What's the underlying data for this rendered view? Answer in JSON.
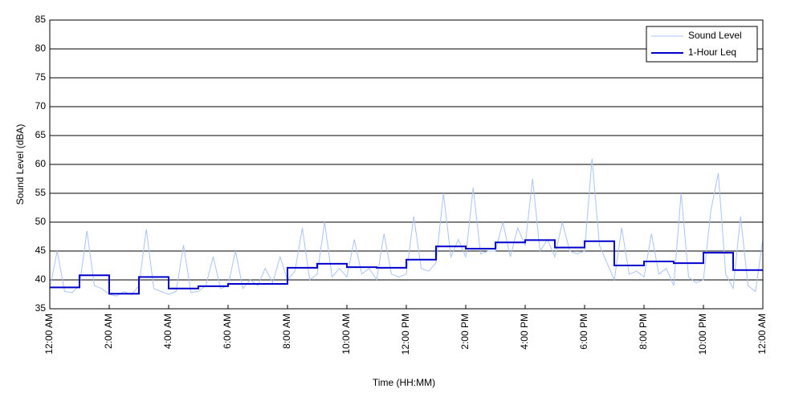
{
  "chart_data": {
    "type": "line",
    "xlabel": "Time (HH:MM)",
    "ylabel": "Sound Level (dBA)",
    "xlim": [
      0,
      24
    ],
    "ylim": [
      35,
      85
    ],
    "xticks": [
      {
        "value": 0,
        "label": "12:00 AM"
      },
      {
        "value": 2,
        "label": "2:00 AM"
      },
      {
        "value": 4,
        "label": "4:00 AM"
      },
      {
        "value": 6,
        "label": "6:00 AM"
      },
      {
        "value": 8,
        "label": "8:00 AM"
      },
      {
        "value": 10,
        "label": "10:00 AM"
      },
      {
        "value": 12,
        "label": "12:00 PM"
      },
      {
        "value": 14,
        "label": "2:00 PM"
      },
      {
        "value": 16,
        "label": "4:00 PM"
      },
      {
        "value": 18,
        "label": "6:00 PM"
      },
      {
        "value": 20,
        "label": "8:00 PM"
      },
      {
        "value": 22,
        "label": "10:00 PM"
      },
      {
        "value": 24,
        "label": "12:00 AM"
      }
    ],
    "yticks": [
      35,
      40,
      45,
      50,
      55,
      60,
      65,
      70,
      75,
      80,
      85
    ],
    "grid": "y",
    "legend": "upper right",
    "series": [
      {
        "name": "Sound Level",
        "color": "#a9c4f5",
        "step": false,
        "x": [
          0,
          0.25,
          0.5,
          0.75,
          1,
          1.25,
          1.5,
          1.75,
          2,
          2.25,
          2.5,
          2.75,
          3,
          3.25,
          3.5,
          3.75,
          4,
          4.25,
          4.5,
          4.75,
          5,
          5.25,
          5.5,
          5.75,
          6,
          6.25,
          6.5,
          6.75,
          7,
          7.25,
          7.5,
          7.75,
          8,
          8.25,
          8.5,
          8.75,
          9,
          9.25,
          9.5,
          9.75,
          10,
          10.25,
          10.5,
          10.75,
          11,
          11.25,
          11.5,
          11.75,
          12,
          12.25,
          12.5,
          12.75,
          13,
          13.25,
          13.5,
          13.75,
          14,
          14.25,
          14.5,
          14.75,
          15,
          15.25,
          15.5,
          15.75,
          16,
          16.25,
          16.5,
          16.75,
          17,
          17.25,
          17.5,
          17.75,
          18,
          18.25,
          18.5,
          18.75,
          19,
          19.25,
          19.5,
          19.75,
          20,
          20.25,
          20.5,
          20.75,
          21,
          21.25,
          21.5,
          21.75,
          22,
          22.25,
          22.5,
          22.75,
          23,
          23.25,
          23.5,
          23.75,
          24
        ],
        "values": [
          38.5,
          45,
          38,
          37.8,
          39,
          48.5,
          39,
          38.5,
          37.5,
          37.2,
          38,
          37.4,
          39,
          48.8,
          38.5,
          38,
          37.5,
          38,
          46,
          37.8,
          38,
          39,
          44,
          38.5,
          39,
          45,
          38.5,
          40,
          39,
          42,
          39.5,
          44,
          40,
          41.5,
          49,
          40,
          41,
          50,
          40.5,
          42,
          40.5,
          47,
          41,
          42,
          40,
          48,
          41,
          40.5,
          41,
          51,
          42,
          41.5,
          43,
          55,
          44,
          47,
          44,
          56,
          44.5,
          45,
          45,
          50,
          44,
          49,
          46,
          57.5,
          45,
          47,
          44,
          50,
          45,
          44.5,
          45,
          61,
          46,
          43,
          40,
          49,
          41,
          41.5,
          40.5,
          48,
          41,
          42,
          39,
          55,
          40.5,
          39.5,
          40,
          52,
          58.5,
          41,
          38.5,
          51,
          39,
          38,
          47
        ]
      },
      {
        "name": "1-Hour Leq",
        "color": "#0000cc",
        "step": true,
        "x": [
          0,
          1,
          2,
          3,
          4,
          5,
          6,
          7,
          8,
          9,
          10,
          11,
          12,
          13,
          14,
          15,
          16,
          17,
          18,
          19,
          20,
          21,
          22,
          23
        ],
        "values": [
          38.7,
          40.8,
          37.6,
          40.5,
          38.5,
          38.9,
          39.3,
          39.3,
          42.1,
          42.8,
          42.2,
          42.1,
          43.5,
          45.8,
          45.4,
          46.5,
          46.9,
          45.6,
          46.7,
          42.5,
          43.2,
          42.9,
          44.7,
          41.7
        ]
      }
    ]
  }
}
